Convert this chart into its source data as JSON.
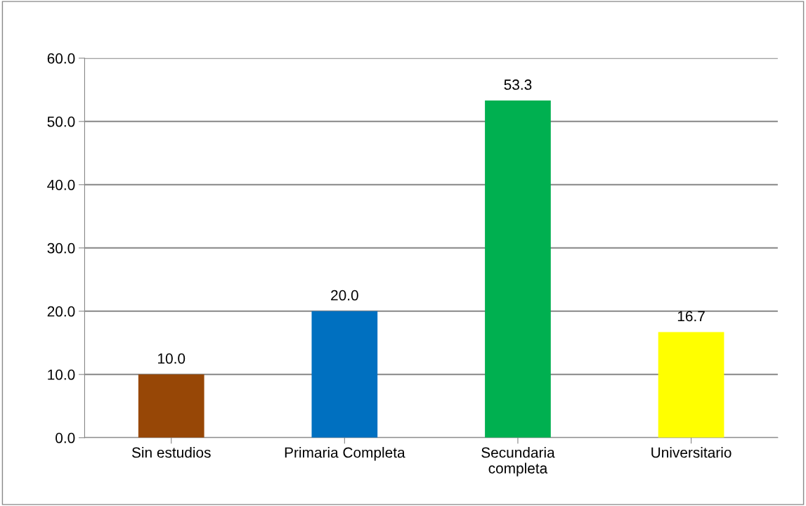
{
  "chart_data": {
    "type": "bar",
    "categories": [
      "Sin estudios",
      "Primaria Completa",
      "Secundaria\ncompleta",
      "Universitario"
    ],
    "values": [
      10.0,
      20.0,
      53.3,
      16.7
    ],
    "colors": [
      "#974706",
      "#0070c0",
      "#00b050",
      "#ffff00"
    ],
    "value_labels": [
      "10.0",
      "20.0",
      "53.3",
      "16.7"
    ],
    "ylim": [
      0,
      60
    ],
    "yticks": [
      {
        "value": 0,
        "label": "0.0"
      },
      {
        "value": 10,
        "label": "10.0"
      },
      {
        "value": 20,
        "label": "20.0"
      },
      {
        "value": 30,
        "label": "30.0"
      },
      {
        "value": 40,
        "label": "40.0"
      },
      {
        "value": 50,
        "label": "50.0"
      },
      {
        "value": 60,
        "label": "60.0"
      }
    ],
    "grid": "y",
    "legend": false
  }
}
